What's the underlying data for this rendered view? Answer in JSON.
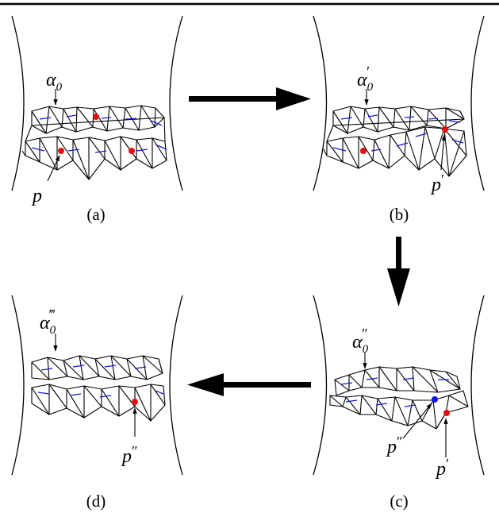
{
  "figure": {
    "panels": [
      {
        "id": "a",
        "caption": "(a)",
        "curve_base": "α",
        "curve_sub": "0",
        "curve_prime": "",
        "points": [
          {
            "base": "p",
            "prime": "",
            "color": "#e01010"
          }
        ]
      },
      {
        "id": "b",
        "caption": "(b)",
        "curve_base": "α",
        "curve_sub": "0",
        "curve_prime": "′",
        "points": [
          {
            "base": "p",
            "prime": "′",
            "color": "#e01010"
          }
        ]
      },
      {
        "id": "c",
        "caption": "(c)",
        "curve_base": "α",
        "curve_sub": "0",
        "curve_prime": "″",
        "points": [
          {
            "base": "p",
            "prime": "″",
            "color": "#1010e0"
          },
          {
            "base": "p",
            "prime": "′",
            "color": "#e01010"
          }
        ]
      },
      {
        "id": "d",
        "caption": "(d)",
        "curve_base": "α",
        "curve_sub": "0",
        "curve_prime": "‴",
        "points": [
          {
            "base": "p",
            "prime": "″",
            "color": "#e01010"
          }
        ]
      }
    ],
    "arrows": [
      {
        "from": "a",
        "to": "b",
        "direction": "right"
      },
      {
        "from": "b",
        "to": "c",
        "direction": "down"
      },
      {
        "from": "c",
        "to": "d",
        "direction": "left"
      }
    ],
    "colors": {
      "ink": "#000000",
      "curve": "#1a1ad0",
      "point_red": "#e01010",
      "point_blue": "#1010e0"
    }
  }
}
